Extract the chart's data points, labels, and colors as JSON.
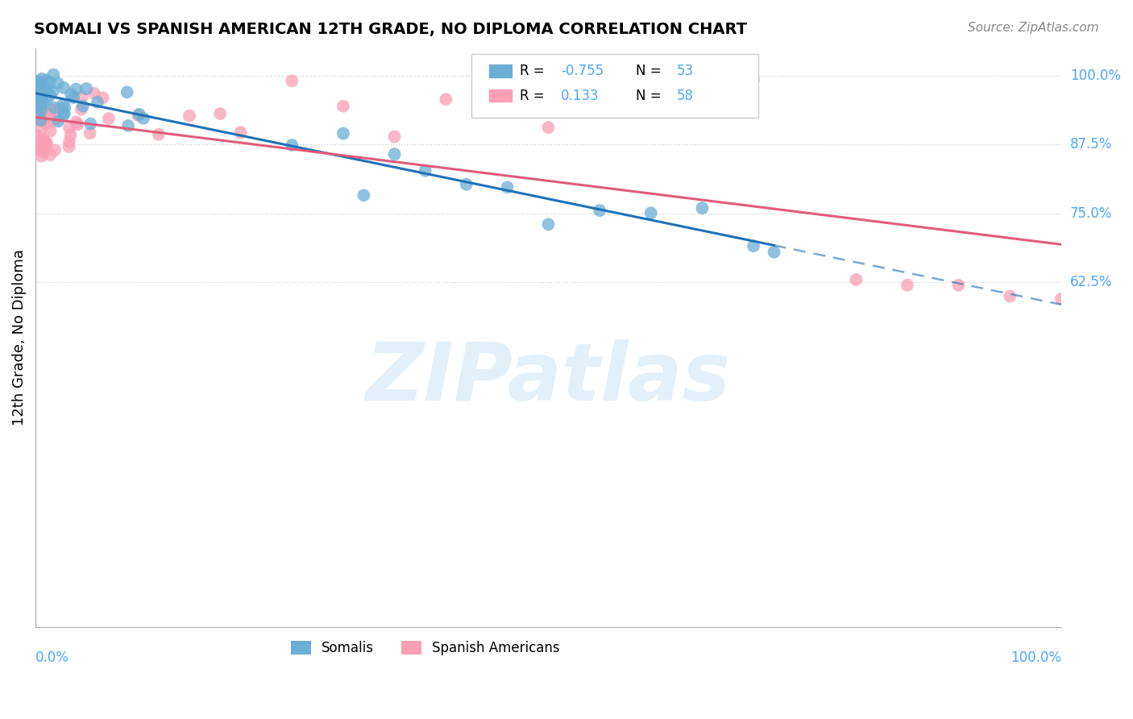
{
  "title": "SOMALI VS SPANISH AMERICAN 12TH GRADE, NO DIPLOMA CORRELATION CHART",
  "source": "Source: ZipAtlas.com",
  "ylabel": "12th Grade, No Diploma",
  "somali_R": -0.755,
  "somali_N": 53,
  "spanish_R": 0.133,
  "spanish_N": 58,
  "somali_color": "#6baed6",
  "spanish_color": "#fa9fb5",
  "somali_line_color": "#2171b5",
  "spanish_line_color": "#e05c7a",
  "background_color": "#ffffff",
  "watermark": "ZIPatlas",
  "grid_color": "#cccccc",
  "axis_label_color": "#4da6ff",
  "right_labels": {
    "1.0": "100.0%",
    "0.875": "87.5%",
    "0.75": "75.0%",
    "0.625": "62.5%"
  },
  "legend_box_color": "#eeeeee"
}
